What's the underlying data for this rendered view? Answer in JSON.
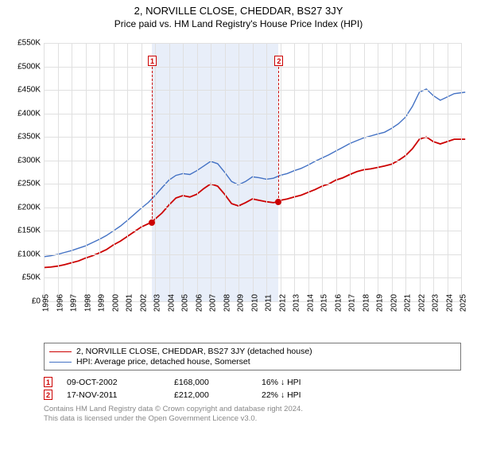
{
  "title": "2, NORVILLE CLOSE, CHEDDAR, BS27 3JY",
  "subtitle": "Price paid vs. HM Land Registry's House Price Index (HPI)",
  "chart": {
    "type": "line",
    "background_color": "#ffffff",
    "grid_color": "#e0e0e0",
    "shaded_region_color": "#e8eef9",
    "shaded_region": {
      "x_start": 2002.77,
      "x_end": 2011.88
    },
    "xlim": [
      1995,
      2025
    ],
    "ylim": [
      0,
      550000
    ],
    "ytick_step": 50000,
    "ytick_prefix": "£",
    "ytick_labels": [
      "£0",
      "£50K",
      "£100K",
      "£150K",
      "£200K",
      "£250K",
      "£300K",
      "£350K",
      "£400K",
      "£450K",
      "£500K",
      "£550K"
    ],
    "xtick_step": 1,
    "xtick_labels": [
      "1995",
      "1996",
      "1997",
      "1998",
      "1999",
      "2000",
      "2001",
      "2002",
      "2003",
      "2004",
      "2005",
      "2006",
      "2007",
      "2008",
      "2009",
      "2010",
      "2011",
      "2012",
      "2013",
      "2014",
      "2015",
      "2016",
      "2017",
      "2018",
      "2019",
      "2020",
      "2021",
      "2022",
      "2023",
      "2024",
      "2025"
    ],
    "label_fontsize": 10,
    "title_fontsize": 13,
    "series": [
      {
        "name": "price_paid",
        "label": "2, NORVILLE CLOSE, CHEDDAR, BS27 3JY (detached house)",
        "color": "#cc0000",
        "line_width": 1.8,
        "x": [
          1995,
          1995.5,
          1996,
          1996.5,
          1997,
          1997.5,
          1998,
          1998.5,
          1999,
          1999.5,
          2000,
          2000.5,
          2001,
          2001.5,
          2002,
          2002.5,
          2002.77,
          2003,
          2003.5,
          2004,
          2004.5,
          2005,
          2005.5,
          2006,
          2006.5,
          2007,
          2007.5,
          2008,
          2008.5,
          2009,
          2009.5,
          2010,
          2010.5,
          2011,
          2011.5,
          2011.88,
          2012,
          2012.5,
          2013,
          2013.5,
          2014,
          2014.5,
          2015,
          2015.5,
          2016,
          2016.5,
          2017,
          2017.5,
          2018,
          2018.5,
          2019,
          2019.5,
          2020,
          2020.5,
          2021,
          2021.5,
          2022,
          2022.5,
          2023,
          2023.5,
          2024,
          2024.5,
          2025.3
        ],
        "y": [
          72000,
          73000,
          75000,
          78000,
          82000,
          86000,
          92000,
          97000,
          103000,
          110000,
          120000,
          128000,
          138000,
          148000,
          158000,
          165000,
          168000,
          175000,
          188000,
          205000,
          220000,
          225000,
          222000,
          228000,
          240000,
          250000,
          245000,
          228000,
          208000,
          203000,
          210000,
          218000,
          215000,
          212000,
          210000,
          212000,
          215000,
          218000,
          222000,
          226000,
          232000,
          238000,
          245000,
          250000,
          258000,
          263000,
          270000,
          276000,
          280000,
          282000,
          285000,
          288000,
          292000,
          300000,
          310000,
          325000,
          345000,
          350000,
          340000,
          335000,
          340000,
          345000,
          345000
        ]
      },
      {
        "name": "hpi",
        "label": "HPI: Average price, detached house, Somerset",
        "color": "#4472c4",
        "line_width": 1.4,
        "x": [
          1995,
          1995.5,
          1996,
          1996.5,
          1997,
          1997.5,
          1998,
          1998.5,
          1999,
          1999.5,
          2000,
          2000.5,
          2001,
          2001.5,
          2002,
          2002.5,
          2003,
          2003.5,
          2004,
          2004.5,
          2005,
          2005.5,
          2006,
          2006.5,
          2007,
          2007.5,
          2008,
          2008.5,
          2009,
          2009.5,
          2010,
          2010.5,
          2011,
          2011.5,
          2012,
          2012.5,
          2013,
          2013.5,
          2014,
          2014.5,
          2015,
          2015.5,
          2016,
          2016.5,
          2017,
          2017.5,
          2018,
          2018.5,
          2019,
          2019.5,
          2020,
          2020.5,
          2021,
          2021.5,
          2022,
          2022.5,
          2023,
          2023.5,
          2024,
          2024.5,
          2025.3
        ],
        "y": [
          95000,
          97000,
          100000,
          104000,
          108000,
          113000,
          118000,
          125000,
          132000,
          140000,
          150000,
          160000,
          172000,
          185000,
          198000,
          210000,
          225000,
          242000,
          258000,
          268000,
          272000,
          270000,
          278000,
          288000,
          298000,
          293000,
          275000,
          255000,
          248000,
          255000,
          265000,
          263000,
          260000,
          262000,
          268000,
          272000,
          278000,
          283000,
          290000,
          298000,
          305000,
          312000,
          320000,
          328000,
          336000,
          342000,
          348000,
          352000,
          356000,
          360000,
          368000,
          378000,
          392000,
          415000,
          445000,
          452000,
          438000,
          428000,
          435000,
          442000,
          445000
        ]
      }
    ],
    "markers": [
      {
        "id": "1",
        "x": 2002.77,
        "y": 168000
      },
      {
        "id": "2",
        "x": 2011.88,
        "y": 212000
      }
    ],
    "marker_box_color": "#cc0000",
    "marker_box_y_top": 30
  },
  "legend": {
    "border_color": "#777777",
    "fontsize": 10.5,
    "items": [
      {
        "color": "#cc0000",
        "width": 1.8,
        "label": "2, NORVILLE CLOSE, CHEDDAR, BS27 3JY (detached house)"
      },
      {
        "color": "#4472c4",
        "width": 1.4,
        "label": "HPI: Average price, detached house, Somerset"
      }
    ]
  },
  "transactions": [
    {
      "id": "1",
      "date": "09-OCT-2002",
      "price": "£168,000",
      "pct": "16%",
      "arrow": "↓",
      "suffix": "HPI"
    },
    {
      "id": "2",
      "date": "17-NOV-2011",
      "price": "£212,000",
      "pct": "22%",
      "arrow": "↓",
      "suffix": "HPI"
    }
  ],
  "footnote": {
    "line1": "Contains HM Land Registry data © Crown copyright and database right 2024.",
    "line2": "This data is licensed under the Open Government Licence v3.0.",
    "color": "#888888",
    "fontsize": 9.5
  }
}
